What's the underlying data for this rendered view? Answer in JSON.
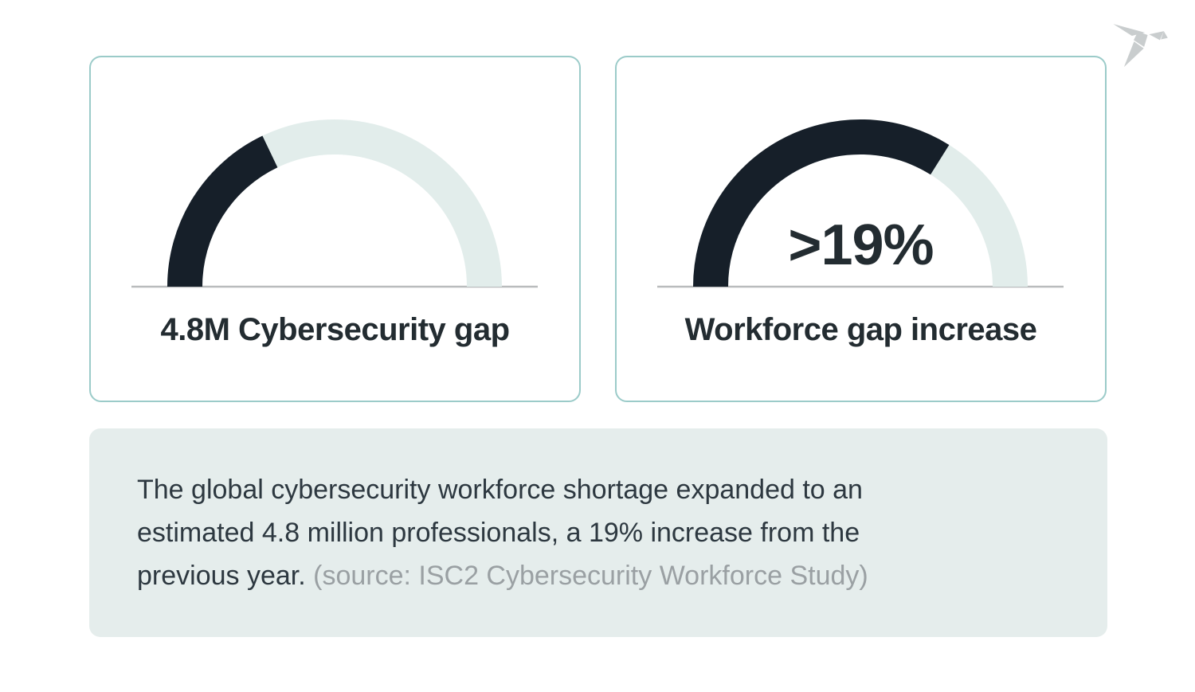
{
  "colors": {
    "dark": "#161f29",
    "track": "#e2edeb",
    "card_border": "#9bcbc9",
    "note_bg": "#e5edec",
    "baseline": "#b9bcbd",
    "heading_text": "#232c31",
    "body_text": "#2d3840",
    "source_text": "#9aa0a3",
    "logo_gray": "#c9cdce",
    "page_bg": "#ffffff"
  },
  "cards": [
    {
      "value_display": "",
      "label": "4.8M Cybersecurity gap"
    },
    {
      "value_display": ">19%",
      "label": "Workforce gap increase"
    }
  ],
  "note": {
    "lines": [
      "The global cybersecurity workforce shortage expanded to an",
      "estimated 4.8 million professionals, a 19% increase from the",
      "previous year. "
    ],
    "source": "(source: ISC2 Cybersecurity Workforce Study)"
  },
  "logo": {
    "name": "origami-bird"
  },
  "chart_data": [
    {
      "type": "pie",
      "variant": "semicircular-gauge",
      "title": "4.8M Cybersecurity gap",
      "center_value_label": "",
      "fill_fraction": 0.358,
      "fill_percent_of_semicircle": 36,
      "depicts": "4.8M global cybersecurity workforce gap",
      "fill_color": "#161f29",
      "track_color": "#e2edeb",
      "legend": "none",
      "grid": false
    },
    {
      "type": "pie",
      "variant": "semicircular-gauge",
      "title": "Workforce gap increase",
      "center_value_label": ">19%",
      "fill_fraction": 0.678,
      "fill_percent_of_semicircle": 68,
      "depicts": ">19% workforce gap increase year-over-year",
      "fill_color": "#161f29",
      "track_color": "#e2edeb",
      "legend": "none",
      "grid": false
    }
  ]
}
